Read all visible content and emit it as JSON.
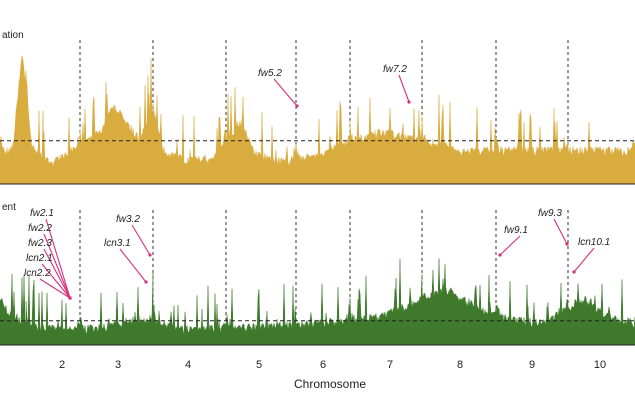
{
  "chart_data": {
    "type": "area",
    "xlabel": "Chromosome",
    "tick_labels": [
      "2",
      "3",
      "4",
      "5",
      "6",
      "7",
      "8",
      "9",
      "10"
    ],
    "panels": [
      {
        "key": "top",
        "title": "ation",
        "color": "#d9ac3f",
        "threshold_level": 0.3,
        "profile": [
          [
            0.0,
            0.2
          ],
          [
            0.02,
            0.24
          ],
          [
            0.035,
            0.9
          ],
          [
            0.05,
            0.25
          ],
          [
            0.08,
            0.12
          ],
          [
            0.12,
            0.25
          ],
          [
            0.16,
            0.35
          ],
          [
            0.18,
            0.55
          ],
          [
            0.2,
            0.4
          ],
          [
            0.22,
            0.3
          ],
          [
            0.24,
            0.48
          ],
          [
            0.26,
            0.2
          ],
          [
            0.3,
            0.15
          ],
          [
            0.34,
            0.18
          ],
          [
            0.36,
            0.3
          ],
          [
            0.38,
            0.42
          ],
          [
            0.4,
            0.2
          ],
          [
            0.44,
            0.15
          ],
          [
            0.5,
            0.18
          ],
          [
            0.55,
            0.28
          ],
          [
            0.6,
            0.35
          ],
          [
            0.65,
            0.3
          ],
          [
            0.7,
            0.26
          ],
          [
            0.72,
            0.22
          ]
        ],
        "annotations": [
          {
            "label": "fw5.2",
            "chrom": 5
          },
          {
            "label": "fw7.2",
            "chrom": 7
          }
        ]
      },
      {
        "key": "bottom",
        "title": "ent",
        "color": "#3f7a2c",
        "threshold_level": 0.18,
        "profile": [
          [
            0.0,
            0.3
          ],
          [
            0.03,
            0.18
          ],
          [
            0.06,
            0.12
          ],
          [
            0.1,
            0.1
          ],
          [
            0.16,
            0.12
          ],
          [
            0.22,
            0.18
          ],
          [
            0.3,
            0.1
          ],
          [
            0.4,
            0.12
          ],
          [
            0.5,
            0.15
          ],
          [
            0.6,
            0.2
          ],
          [
            0.7,
            0.4
          ],
          [
            0.76,
            0.25
          ],
          [
            0.8,
            0.18
          ],
          [
            0.86,
            0.15
          ],
          [
            0.92,
            0.35
          ],
          [
            0.96,
            0.2
          ],
          [
            1.0,
            0.15
          ]
        ],
        "annotations": [
          {
            "label": "fw2.1",
            "chrom": 2
          },
          {
            "label": "fw2.2",
            "chrom": 2
          },
          {
            "label": "fw2.3",
            "chrom": 2
          },
          {
            "label": "lcn2.1",
            "chrom": 2
          },
          {
            "label": "lcn2.2",
            "chrom": 2
          },
          {
            "label": "fw3.2",
            "chrom": 3
          },
          {
            "label": "lcn3.1",
            "chrom": 3
          },
          {
            "label": "fw9.1",
            "chrom": 9
          },
          {
            "label": "fw9.3",
            "chrom": 9
          },
          {
            "label": "lcn10.1",
            "chrom": 10
          }
        ]
      }
    ]
  }
}
